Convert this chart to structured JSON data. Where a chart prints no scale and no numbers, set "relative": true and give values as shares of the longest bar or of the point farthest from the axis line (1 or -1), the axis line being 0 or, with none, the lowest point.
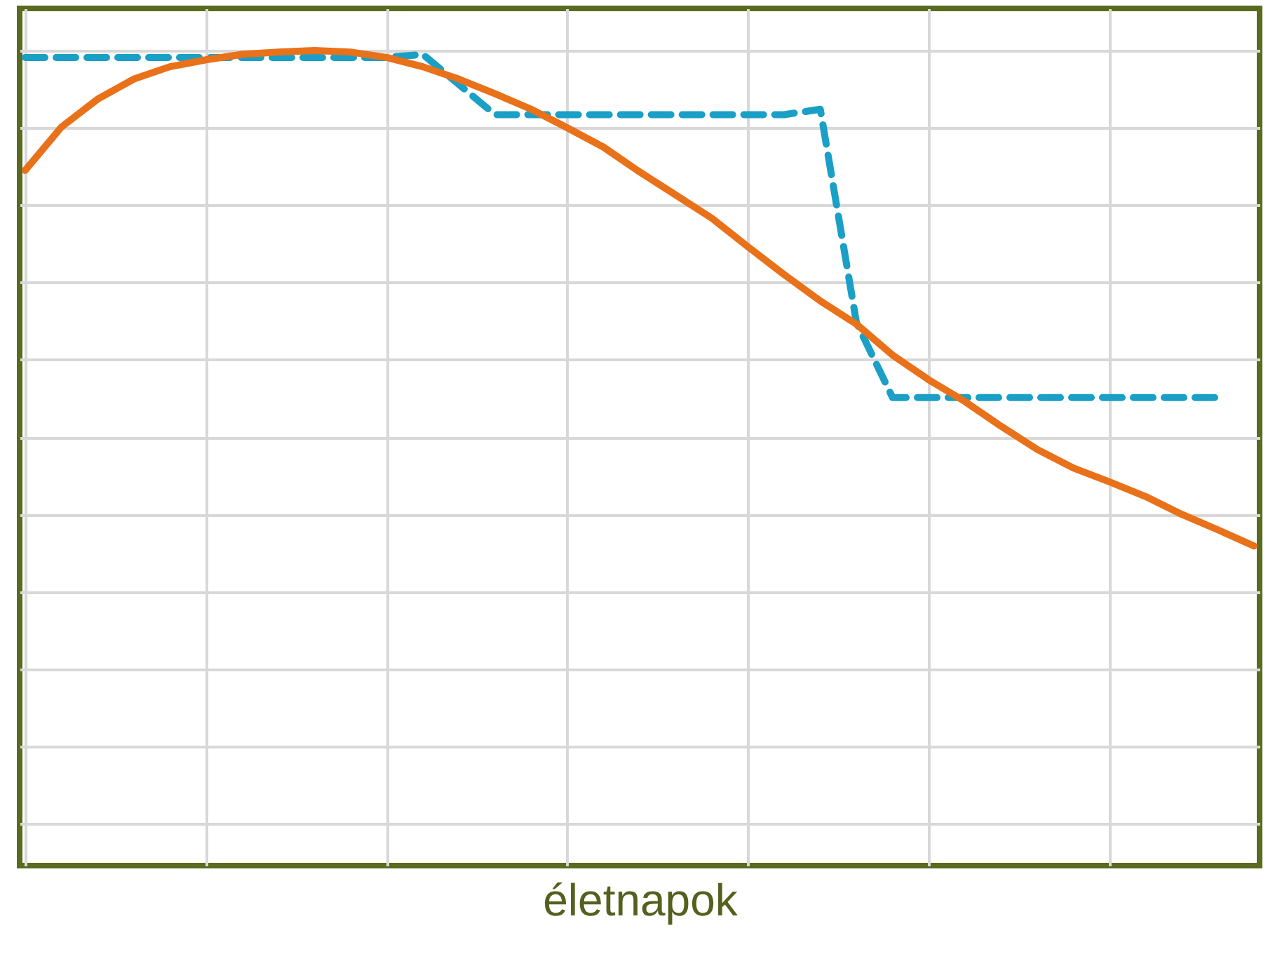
{
  "chart_data": {
    "type": "line",
    "xlabel": "életnapok",
    "relative": true,
    "grid": true,
    "marker": "none",
    "categories": [
      null,
      null,
      null,
      null,
      null,
      null,
      null,
      null,
      null,
      null,
      null,
      null,
      null,
      null,
      null,
      null,
      null,
      null,
      null,
      null,
      null,
      null,
      null,
      null,
      null,
      null,
      null,
      null,
      null,
      null,
      null,
      null,
      null,
      null,
      null
    ],
    "series": [
      {
        "color": "#1a9fc6",
        "line_style": "dashed",
        "values": [
          0.991,
          0.991,
          0.991,
          0.991,
          0.991,
          0.991,
          0.991,
          0.991,
          0.991,
          0.991,
          0.991,
          0.995,
          0.956,
          0.917,
          0.917,
          0.917,
          0.917,
          0.917,
          0.917,
          0.917,
          0.917,
          0.917,
          0.924,
          0.648,
          0.551,
          0.551,
          0.551,
          0.551,
          0.551,
          0.551,
          0.551,
          0.551,
          0.551,
          0.551,
          null
        ]
      },
      {
        "color": "#e8711a",
        "line_style": "solid",
        "values": [
          0.845,
          0.901,
          0.937,
          0.963,
          0.979,
          0.988,
          0.995,
          0.998,
          1,
          0.998,
          0.991,
          0.979,
          0.963,
          0.944,
          0.924,
          0.9,
          0.875,
          0.843,
          0.813,
          0.783,
          0.746,
          0.71,
          0.676,
          0.646,
          0.606,
          0.574,
          0.546,
          0.514,
          0.484,
          0.46,
          0.442,
          0.423,
          0.4,
          0.38,
          0.359
        ]
      }
    ]
  }
}
